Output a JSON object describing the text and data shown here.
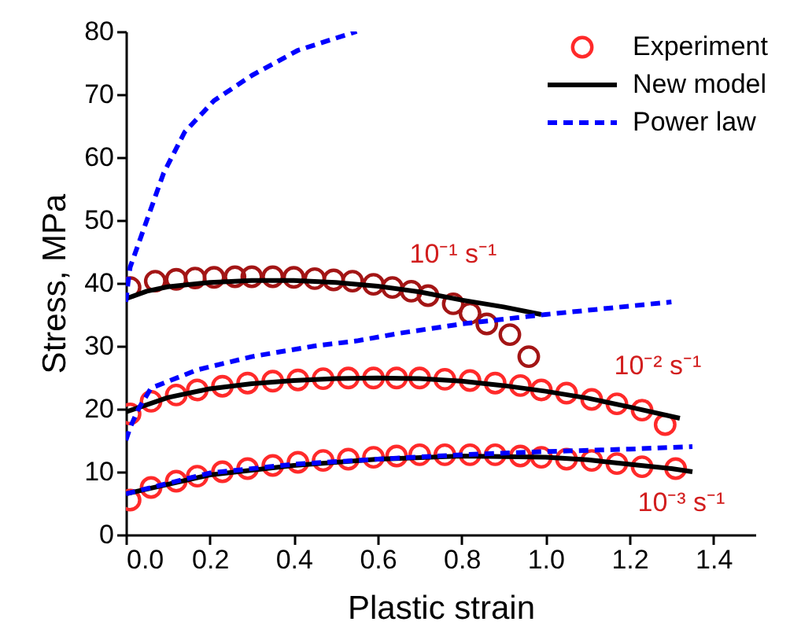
{
  "chart_data": {
    "type": "line",
    "xlabel": "Plastic strain",
    "ylabel": "Stress, MPa",
    "xlim": [
      0,
      1.5
    ],
    "ylim": [
      0,
      80
    ],
    "xticks": [
      {
        "value": 0,
        "label": "0.0"
      },
      0.2,
      0.4,
      0.6,
      0.8,
      {
        "value": 1,
        "label": "1.0"
      },
      1.2,
      1.4
    ],
    "yticks": [
      0,
      10,
      20,
      30,
      40,
      50,
      60,
      70,
      80
    ],
    "grid": false,
    "legend": "top right",
    "annotations": [
      "10⁻¹ s⁻¹",
      "10⁻² s⁻¹",
      "10⁻³ s⁻¹"
    ],
    "series": [
      {
        "name": "Experiment",
        "type": "scatter",
        "marker": "circle",
        "color": "#ff2a2a",
        "x": [
          0.01,
          0.06,
          0.12,
          0.17,
          0.23,
          0.29,
          0.35,
          0.41,
          0.47,
          0.53,
          0.59,
          0.645,
          0.7,
          0.76,
          0.82,
          0.88,
          0.94,
          0.99,
          1.05,
          1.11,
          1.17,
          1.23,
          1.285
        ],
        "values": [
          19.2,
          21.2,
          22.2,
          23,
          23.6,
          24.1,
          24.4,
          24.6,
          24.8,
          24.9,
          24.9,
          24.9,
          24.9,
          24.7,
          24.5,
          24.1,
          23.7,
          23,
          22.5,
          21.5,
          20.8,
          19.8,
          17.5
        ]
      },
      {
        "type": "scatter",
        "marker": "circle",
        "color": "#a31515",
        "x": [
          0.01,
          0.07,
          0.12,
          0.165,
          0.21,
          0.26,
          0.3,
          0.35,
          0.4,
          0.45,
          0.495,
          0.54,
          0.59,
          0.635,
          0.68,
          0.72,
          0.78,
          0.82,
          0.86,
          0.915,
          0.96
        ],
        "values": [
          39.3,
          40.3,
          40.6,
          40.8,
          40.9,
          41,
          41,
          41,
          40.9,
          40.7,
          40.5,
          40.3,
          39.8,
          39.3,
          38.7,
          38,
          36.7,
          35.2,
          33.5,
          31.8,
          28.3
        ]
      },
      {
        "type": "scatter",
        "marker": "circle",
        "color": "#ff2a2a",
        "x": [
          0.01,
          0.06,
          0.12,
          0.17,
          0.23,
          0.29,
          0.35,
          0.41,
          0.47,
          0.53,
          0.59,
          0.645,
          0.7,
          0.76,
          0.82,
          0.88,
          0.94,
          0.99,
          1.05,
          1.11,
          1.17,
          1.23,
          1.31
        ],
        "values": [
          5.5,
          7.5,
          8.5,
          9.3,
          10,
          10.5,
          11,
          11.5,
          11.8,
          12,
          12.3,
          12.5,
          12.7,
          12.7,
          12.7,
          12.7,
          12.5,
          12.3,
          12,
          11.8,
          11.3,
          10.8,
          10.5
        ]
      },
      {
        "name": "New model",
        "type": "line",
        "line_style": "solid",
        "color": "#000000",
        "x": [
          0,
          0.05,
          0.1,
          0.2,
          0.3,
          0.4,
          0.5,
          0.6,
          0.7,
          0.8,
          0.9,
          0.99
        ],
        "values": [
          37.5,
          38.7,
          39.4,
          40.1,
          40.4,
          40.4,
          40.1,
          39.5,
          38.6,
          37.3,
          36.2,
          35
        ]
      },
      {
        "type": "line",
        "line_style": "solid",
        "color": "#000000",
        "x": [
          0,
          0.1,
          0.2,
          0.3,
          0.4,
          0.5,
          0.6,
          0.7,
          0.8,
          0.9,
          1.0,
          1.1,
          1.2,
          1.32
        ],
        "values": [
          19.5,
          21.8,
          23.2,
          24,
          24.5,
          24.8,
          24.9,
          24.8,
          24.4,
          23.7,
          22.8,
          21.7,
          20.3,
          18.5
        ]
      },
      {
        "type": "line",
        "line_style": "solid",
        "color": "#000000",
        "x": [
          0,
          0.2,
          0.4,
          0.6,
          0.8,
          1.0,
          1.1,
          1.2,
          1.3,
          1.35
        ],
        "values": [
          6.5,
          9.5,
          11,
          12,
          12.5,
          12.3,
          11.9,
          11.2,
          10.5,
          10
        ]
      },
      {
        "name": "Power law",
        "type": "line",
        "line_style": "dashed",
        "color": "#0000ff",
        "x": [
          0,
          0.005,
          0.01,
          0.05,
          0.09,
          0.14,
          0.21,
          0.3,
          0.41,
          0.55
        ],
        "values": [
          37,
          40,
          42.5,
          50,
          57.5,
          64,
          69,
          73,
          77,
          80
        ]
      },
      {
        "type": "line",
        "line_style": "dashed",
        "color": "#0000ff",
        "x": [
          0,
          0.01,
          0.03,
          0.06,
          0.17,
          0.3,
          0.45,
          0.55,
          0.65,
          0.8,
          1.0,
          1.15,
          1.3
        ],
        "values": [
          15,
          17,
          20,
          23.3,
          26.2,
          28.3,
          30,
          30.8,
          32,
          33.5,
          35,
          36,
          37
        ]
      },
      {
        "type": "line",
        "line_style": "dashed",
        "color": "#0000ff",
        "x": [
          0,
          0.2,
          0.4,
          0.6,
          0.8,
          1.0,
          1.2,
          1.35
        ],
        "values": [
          6.5,
          9.8,
          11.2,
          12,
          12.7,
          13.2,
          13.6,
          14
        ]
      }
    ]
  }
}
